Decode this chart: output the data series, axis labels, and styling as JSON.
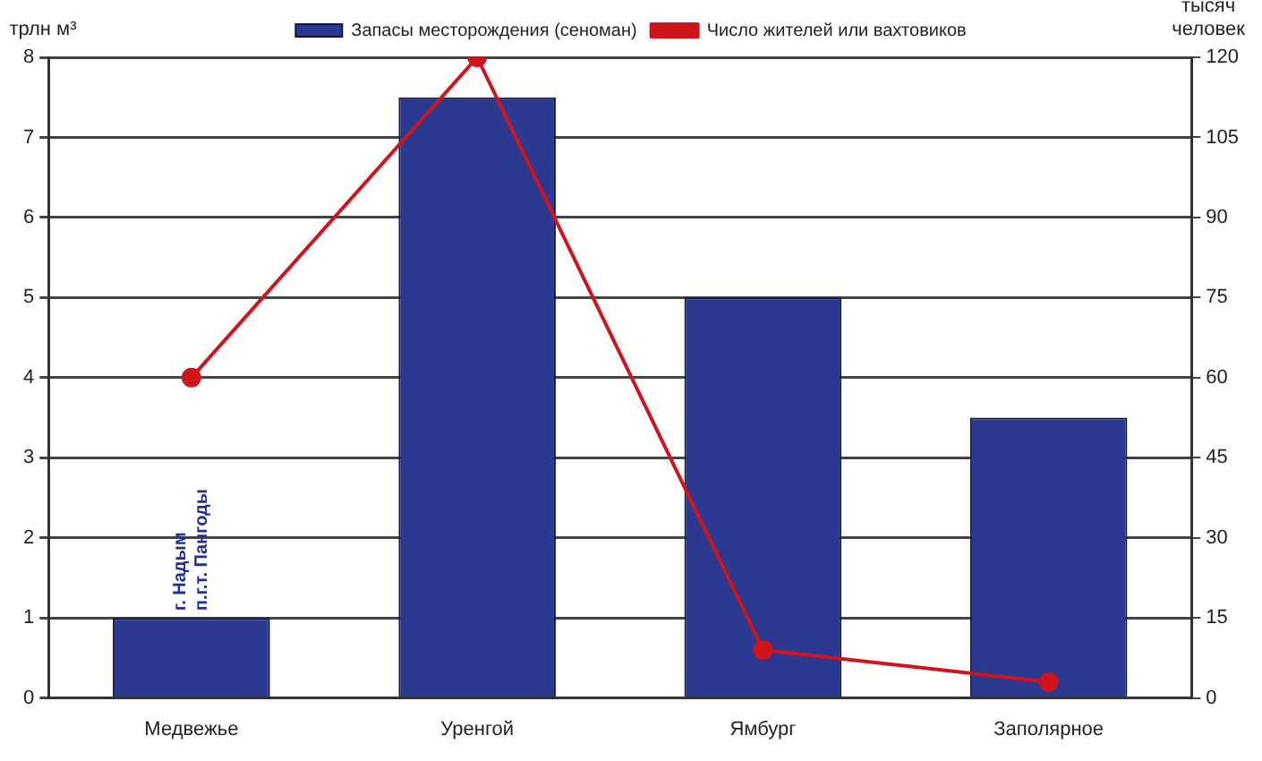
{
  "chart_data": {
    "type": "bar",
    "categories": [
      "Медвежье",
      "Уренгой",
      "Ямбург",
      "Заполярное"
    ],
    "ylabel": "трлн м³",
    "y2label": "тысяч\nчеловек",
    "series": [
      {
        "name": "Запасы месторождения (сеноман)",
        "color": "#2b3990",
        "values": [
          1,
          7.5,
          5,
          3.5
        ]
      },
      {
        "name": "Число жителей или вахтовиков",
        "type": "line",
        "axis": "y2",
        "color": "#d0141c",
        "marker": "circle",
        "values": [
          60,
          120,
          9,
          3
        ]
      }
    ],
    "ylim": [
      0,
      8
    ],
    "yticks": [
      0,
      1,
      2,
      3,
      4,
      5,
      6,
      7,
      8
    ],
    "y2lim": [
      0,
      120
    ],
    "y2ticks": [
      0,
      15,
      30,
      45,
      60,
      75,
      90,
      105,
      120
    ],
    "annotations": [
      {
        "text": "г. Надым\nп.г.т. Пангоды",
        "x": "Медвежье",
        "y": 1
      }
    ],
    "grid": "y",
    "legend": "top"
  }
}
